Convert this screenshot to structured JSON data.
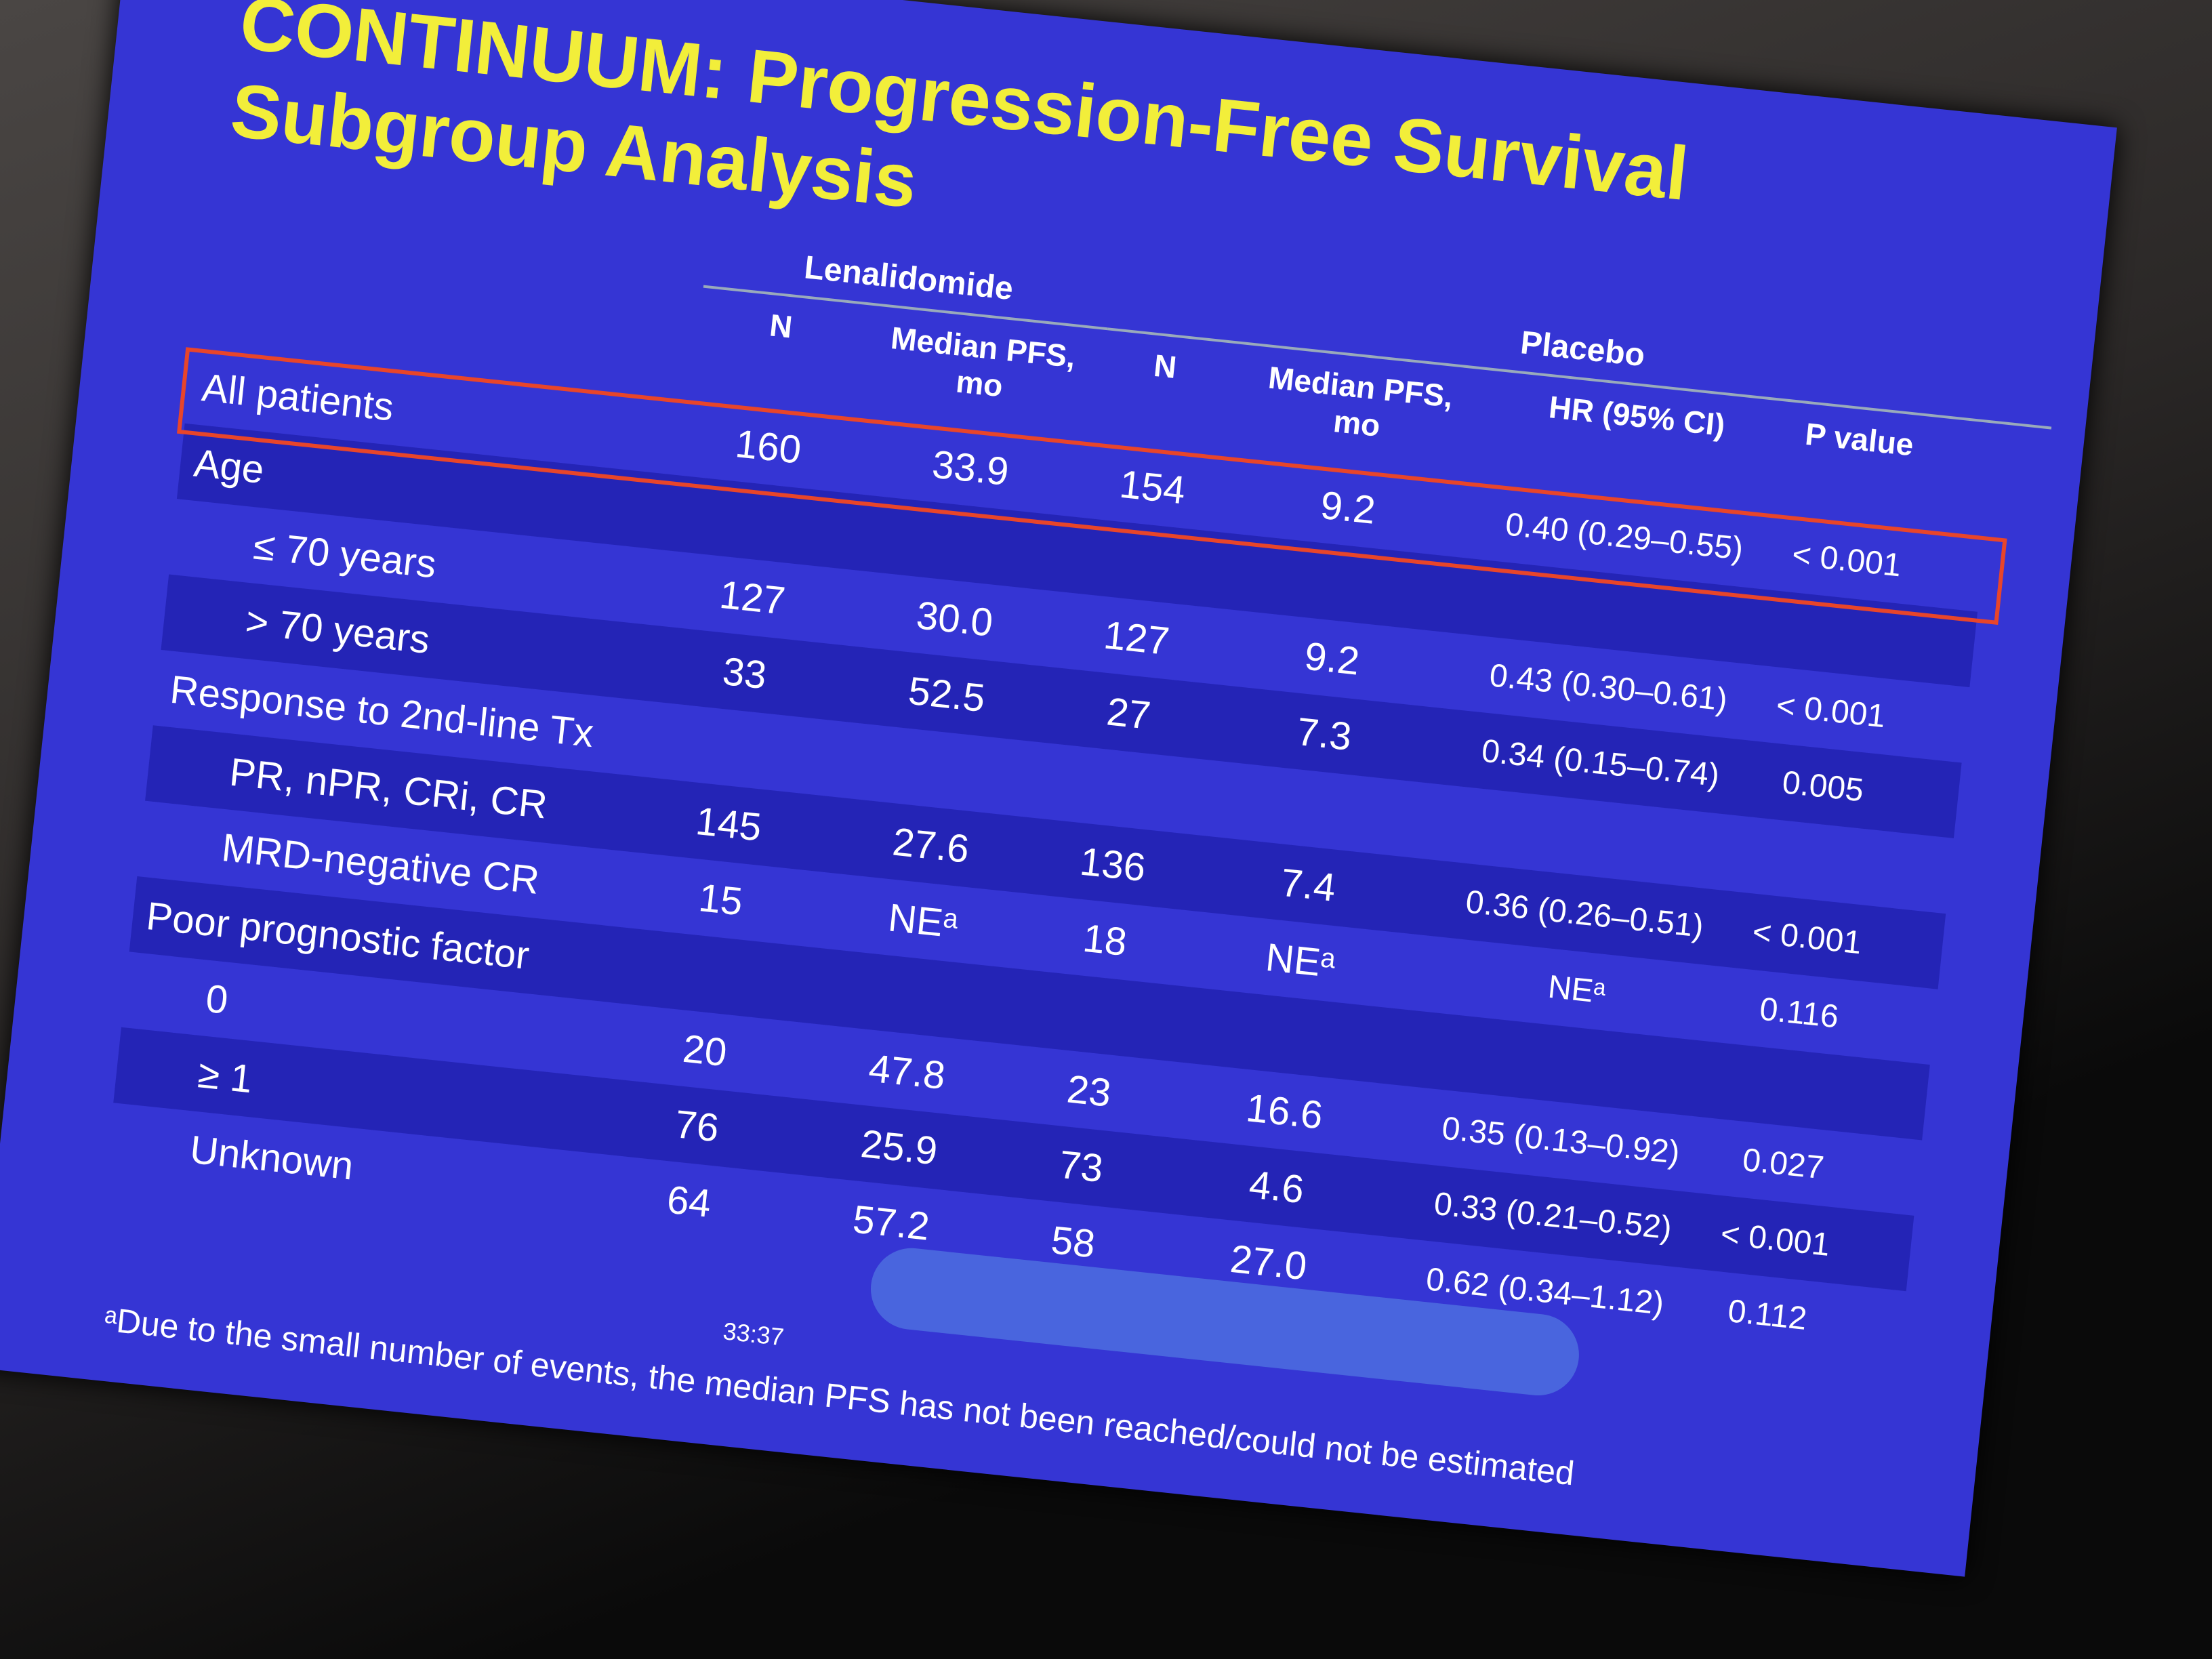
{
  "slide": {
    "title": [
      "CONTINUUM: Progression-Free Survival",
      "Subgroup Analysis"
    ],
    "table": {
      "groups": [
        "Lenalidomide",
        "Placebo"
      ],
      "columns": [
        "N",
        "Median PFS, mo",
        "N",
        "Median PFS, mo",
        "HR (95% CI)",
        "P value"
      ],
      "rows": [
        {
          "label": "All patients",
          "cells": [
            "160",
            "33.9",
            "154",
            "9.2",
            "0.40 (0.29–0.55)",
            "< 0.001"
          ]
        },
        {
          "label": "Age"
        },
        {
          "label": "≤ 70 years",
          "cells": [
            "127",
            "30.0",
            "127",
            "9.2",
            "0.43 (0.30–0.61)",
            "< 0.001"
          ]
        },
        {
          "label": "> 70 years",
          "cells": [
            "33",
            "52.5",
            "27",
            "7.3",
            "0.34 (0.15–0.74)",
            "0.005"
          ]
        },
        {
          "label": "Response to 2nd-line Tx"
        },
        {
          "label": "PR, nPR, CRi, CR",
          "cells": [
            "145",
            "27.6",
            "136",
            "7.4",
            "0.36 (0.26–0.51)",
            "< 0.001"
          ]
        },
        {
          "label": "MRD-negative CR",
          "cells": [
            "15",
            "NEᵃ",
            "18",
            "NEᵃ",
            "NEᵃ",
            "0.116"
          ]
        },
        {
          "label": "Poor prognostic factor"
        },
        {
          "label": "0",
          "cells": [
            "20",
            "47.8",
            "23",
            "16.6",
            "0.35 (0.13–0.92)",
            "0.027"
          ]
        },
        {
          "label": "≥ 1",
          "cells": [
            "76",
            "25.9",
            "73",
            "4.6",
            "0.33 (0.21–0.52)",
            "< 0.001"
          ]
        },
        {
          "label": "Unknown",
          "cells": [
            "64",
            "57.2",
            "58",
            "27.0",
            "0.62 (0.34–1.12)",
            "0.112"
          ]
        }
      ]
    },
    "footnote": "ᵃDue to the small number of events, the median PFS has not been reached/could not be estimated",
    "player": {
      "time": "33:37"
    }
  }
}
